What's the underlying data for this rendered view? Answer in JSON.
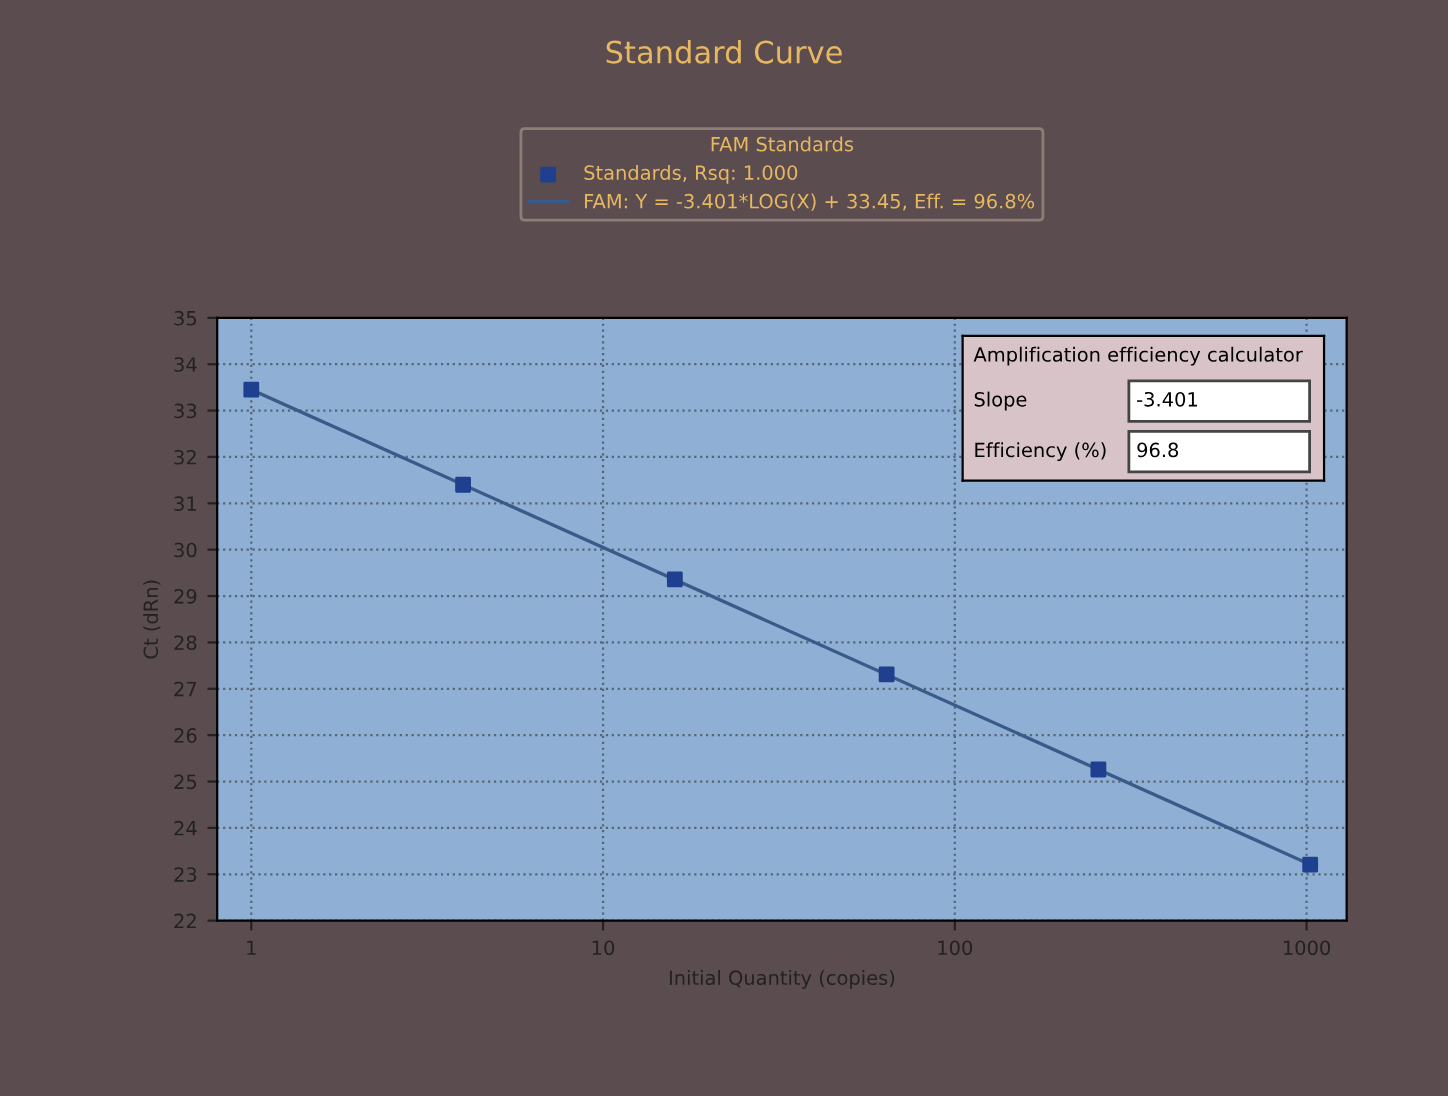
{
  "chart_data": {
    "type": "scatter",
    "title": "Standard Curve",
    "xlabel": "Initial Quantity (copies)",
    "ylabel": "Ct (dRn)",
    "legend_title": "FAM Standards",
    "legend": "top",
    "log": "x",
    "xlim": [
      0.8,
      1300
    ],
    "xticks": [
      1,
      10,
      100,
      1000
    ],
    "ylim": [
      22,
      35
    ],
    "yticks": [
      22,
      23,
      24,
      25,
      26,
      27,
      28,
      29,
      30,
      31,
      32,
      33,
      34,
      35
    ],
    "grid": true,
    "marker": "square",
    "series": [
      {
        "name": "Standards, Rsq: 1.000",
        "color": "#1f3f8f",
        "x": [
          1,
          4,
          16,
          64,
          256,
          1024
        ],
        "values": [
          33.45,
          31.4,
          29.36,
          27.31,
          25.26,
          23.21
        ]
      },
      {
        "type": "line",
        "name": "FAM: Y = -3.401*LOG(X) + 33.45, Eff. = 96.8%",
        "color": "#3a5a8a",
        "line_style": "solid",
        "marker": "none",
        "x": [
          1,
          1024
        ],
        "values": [
          33.45,
          23.21
        ]
      }
    ],
    "annotations": [
      "Amplification efficiency calculator",
      "Slope",
      "-3.401",
      "Efficiency (%)",
      "96.8"
    ]
  }
}
